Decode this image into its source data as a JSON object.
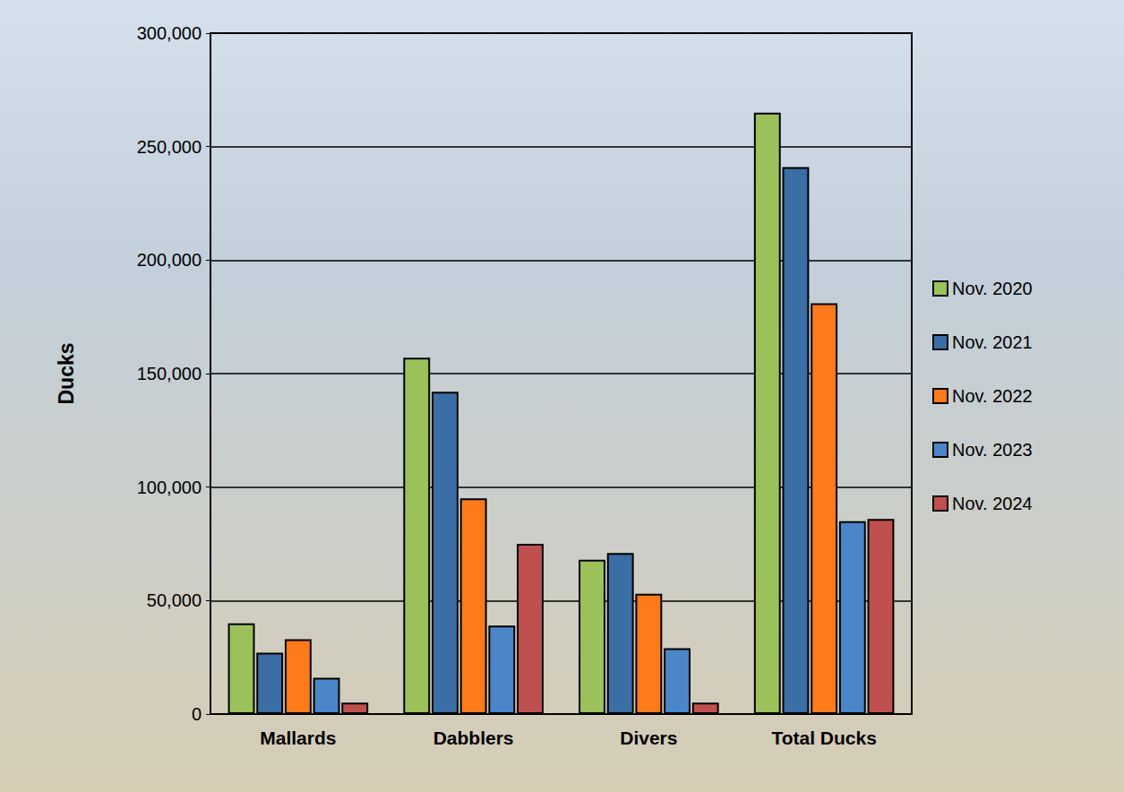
{
  "chart_data": {
    "type": "bar",
    "y_label": "Ducks",
    "categories": [
      "Mallards",
      "Dabblers",
      "Divers",
      "Total Ducks"
    ],
    "series": [
      {
        "name": "Nov. 2020",
        "color": "#9bc25a",
        "values": [
          40000,
          157000,
          68000,
          265000
        ]
      },
      {
        "name": "Nov. 2021",
        "color": "#3a6ea5",
        "values": [
          27000,
          142000,
          71000,
          241000
        ]
      },
      {
        "name": "Nov. 2022",
        "color": "#ff7a1a",
        "values": [
          33000,
          95000,
          53000,
          181000
        ]
      },
      {
        "name": "Nov. 2023",
        "color": "#4a86c8",
        "values": [
          16000,
          39000,
          29000,
          85000
        ]
      },
      {
        "name": "Nov. 2024",
        "color": "#c0504d",
        "values": [
          5000,
          75000,
          5000,
          86000
        ]
      }
    ],
    "ylim": [
      0,
      300000
    ],
    "yticks": [
      0,
      {
        "value": 50000,
        "label": "50,000"
      },
      {
        "value": 100000,
        "label": "100,000"
      },
      {
        "value": 150000,
        "label": "150,000"
      },
      {
        "value": 200000,
        "label": "200,000"
      },
      {
        "value": 250000,
        "label": "250,000"
      },
      {
        "value": 300000,
        "label": "300,000"
      }
    ],
    "grid": true,
    "legend": "right"
  }
}
